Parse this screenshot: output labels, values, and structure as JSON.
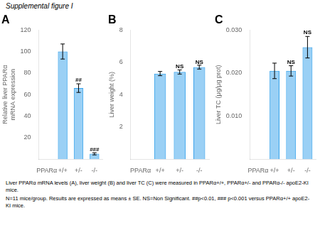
{
  "title": "Supplemental figure I",
  "caption": [
    "Liver PPARα mRNA levels (A), liver weight (B) and liver TC (C) were measured in PPARα+/+, PPARα+/- and PPARα-/- apoE2-KI mice.",
    "N=11 mice/group. Results are expressed as means ± SE. NS=Non Significant. ##p<0.01, ### p<0.001 versus PPARα+/+ apoE2-KI mice."
  ],
  "chart_data": [
    {
      "type": "bar",
      "title": "A",
      "categories": [
        "PPARα",
        "+/+",
        "+/-",
        "-/-"
      ],
      "values": [
        null,
        100,
        66,
        5
      ],
      "errors": [
        null,
        7,
        4,
        1
      ],
      "ylabel": "Relative liver PPARα\nmRNA expression",
      "ylim": [
        0,
        120
      ],
      "yticks": [
        20,
        40,
        60,
        80,
        100,
        120
      ],
      "annotations": [
        {
          "text": "##",
          "x": "+/-",
          "y": 71
        },
        {
          "text": "###",
          "x": "-/-",
          "y": 6
        }
      ],
      "grid": false
    },
    {
      "type": "bar",
      "title": "B",
      "categories": [
        "PPARα",
        "+/+",
        "+/-",
        "-/-"
      ],
      "values": [
        null,
        5.3,
        5.4,
        5.7
      ],
      "errors": [
        null,
        0.13,
        0.13,
        0.12
      ],
      "ylabel": "Liver weight (%)",
      "ylim": [
        0,
        8
      ],
      "yticks": [
        2,
        4,
        6,
        8
      ],
      "annotations": [
        {
          "text": "NS",
          "x": "+/-",
          "y": 5.55
        },
        {
          "text": "NS",
          "x": "-/-",
          "y": 5.84
        }
      ],
      "grid": false
    },
    {
      "type": "bar",
      "title": "C",
      "categories": [
        "PPARα",
        "+/+",
        "+/-",
        "-/-"
      ],
      "values": [
        null,
        0.0205,
        0.0205,
        0.026
      ],
      "errors": [
        null,
        0.0018,
        0.0012,
        0.0025
      ],
      "ylabel": "Liver TC (μg/μg prot)",
      "ylim": [
        0,
        0.03
      ],
      "yticks": [
        {
          "value": 0.01,
          "label": "0.010"
        },
        {
          "value": 0.02,
          "label": "0.020"
        },
        {
          "value": 0.03,
          "label": "0.030"
        }
      ],
      "annotations": [
        {
          "text": "NS",
          "x": "+/-",
          "y": 0.0219
        },
        {
          "text": "NS",
          "x": "-/-",
          "y": 0.0287
        }
      ],
      "grid": false
    }
  ]
}
